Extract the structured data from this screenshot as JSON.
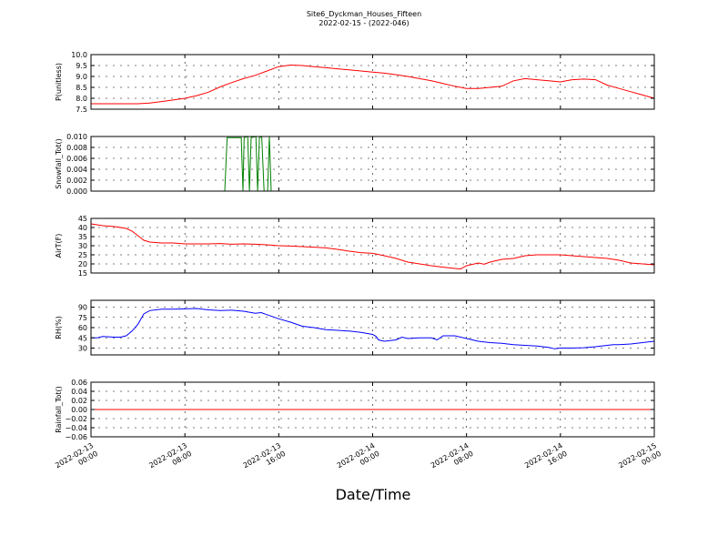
{
  "title": "Site6_Dyckman_Houses_Fifteen",
  "subtitle": "2022-02-15 - (2022-046)",
  "chart_data": {
    "type": "line",
    "xlabel": "Date/Time",
    "x_tick_labels": [
      [
        "2022-02-13",
        "00:00"
      ],
      [
        "2022-02-13",
        "08:00"
      ],
      [
        "2022-02-13",
        "16:00"
      ],
      [
        "2022-02-14",
        "00:00"
      ],
      [
        "2022-02-14",
        "08:00"
      ],
      [
        "2022-02-14",
        "16:00"
      ],
      [
        "2022-02-15",
        "00:00"
      ]
    ],
    "x_range_hours": [
      0,
      48
    ],
    "grid": true,
    "panels": [
      {
        "ylabel": "P(unitless)",
        "ylim": [
          7.5,
          10.0
        ],
        "yticks": [
          "7.5",
          "8.0",
          "8.5",
          "9.0",
          "9.5",
          "10.0"
        ],
        "color": "#ff0000",
        "series": [
          [
            0,
            7.75
          ],
          [
            2,
            7.75
          ],
          [
            4,
            7.75
          ],
          [
            5,
            7.78
          ],
          [
            6,
            7.85
          ],
          [
            7,
            7.92
          ],
          [
            8,
            8.0
          ],
          [
            9,
            8.12
          ],
          [
            10,
            8.28
          ],
          [
            11,
            8.52
          ],
          [
            12,
            8.72
          ],
          [
            13,
            8.9
          ],
          [
            14,
            9.05
          ],
          [
            15,
            9.25
          ],
          [
            16,
            9.45
          ],
          [
            17,
            9.52
          ],
          [
            18,
            9.5
          ],
          [
            19,
            9.45
          ],
          [
            20,
            9.4
          ],
          [
            21,
            9.35
          ],
          [
            22,
            9.3
          ],
          [
            23,
            9.25
          ],
          [
            24,
            9.2
          ],
          [
            25,
            9.15
          ],
          [
            26,
            9.08
          ],
          [
            27,
            9.0
          ],
          [
            28,
            8.9
          ],
          [
            29,
            8.8
          ],
          [
            30,
            8.68
          ],
          [
            31,
            8.55
          ],
          [
            32,
            8.45
          ],
          [
            33,
            8.45
          ],
          [
            34,
            8.5
          ],
          [
            35,
            8.55
          ],
          [
            36,
            8.8
          ],
          [
            37,
            8.9
          ],
          [
            38,
            8.85
          ],
          [
            39,
            8.8
          ],
          [
            40,
            8.75
          ],
          [
            41,
            8.85
          ],
          [
            42,
            8.88
          ],
          [
            43,
            8.85
          ],
          [
            44,
            8.6
          ],
          [
            45,
            8.45
          ],
          [
            46,
            8.3
          ],
          [
            47,
            8.15
          ],
          [
            48,
            8.0
          ]
        ]
      },
      {
        "ylabel": "Snowfall_Tot()",
        "ylim": [
          0.0,
          0.01
        ],
        "yticks": [
          "0.000",
          "0.002",
          "0.004",
          "0.006",
          "0.008",
          "0.010"
        ],
        "color": "#008000",
        "series": [
          [
            0,
            0
          ],
          [
            11.4,
            0
          ],
          [
            11.6,
            0.0098
          ],
          [
            12.8,
            0.0098
          ],
          [
            12.95,
            0.0
          ],
          [
            13.05,
            0.0098
          ],
          [
            13.35,
            0.01
          ],
          [
            13.5,
            0.0
          ],
          [
            13.65,
            0.0098
          ],
          [
            14.05,
            0.01
          ],
          [
            14.2,
            0.0
          ],
          [
            14.35,
            0.0098
          ],
          [
            14.55,
            0.01
          ],
          [
            14.75,
            0.0
          ],
          [
            15.05,
            0.0
          ],
          [
            15.2,
            0.01
          ],
          [
            15.35,
            0.0
          ],
          [
            48,
            0
          ]
        ]
      },
      {
        "ylabel": "AirT(F)",
        "ylim": [
          15,
          45
        ],
        "yticks": [
          "15",
          "20",
          "25",
          "30",
          "35",
          "40",
          "45"
        ],
        "color": "#ff0000",
        "series": [
          [
            0,
            42
          ],
          [
            1,
            41
          ],
          [
            2,
            40.5
          ],
          [
            3,
            39.5
          ],
          [
            3.5,
            38
          ],
          [
            4,
            35.5
          ],
          [
            4.5,
            33
          ],
          [
            5,
            32
          ],
          [
            6,
            31.5
          ],
          [
            7,
            31.5
          ],
          [
            8,
            31
          ],
          [
            9,
            31
          ],
          [
            10,
            31
          ],
          [
            11,
            31.2
          ],
          [
            12,
            30.8
          ],
          [
            13,
            31
          ],
          [
            14,
            30.8
          ],
          [
            15,
            30.5
          ],
          [
            16,
            30
          ],
          [
            17,
            29.8
          ],
          [
            18,
            29.5
          ],
          [
            19,
            29.2
          ],
          [
            20,
            28.8
          ],
          [
            21,
            28
          ],
          [
            22,
            27
          ],
          [
            23,
            26.2
          ],
          [
            24,
            25.8
          ],
          [
            25,
            24.5
          ],
          [
            26,
            23
          ],
          [
            27,
            21
          ],
          [
            28,
            20
          ],
          [
            29,
            19
          ],
          [
            30,
            18.2
          ],
          [
            31,
            17.5
          ],
          [
            31.5,
            17.2
          ],
          [
            32,
            19
          ],
          [
            33,
            20.5
          ],
          [
            33.5,
            19.8
          ],
          [
            34,
            21
          ],
          [
            35,
            22.5
          ],
          [
            36,
            23
          ],
          [
            37,
            24.5
          ],
          [
            38,
            25
          ],
          [
            39,
            25
          ],
          [
            40,
            25
          ],
          [
            41,
            24.5
          ],
          [
            42,
            24
          ],
          [
            43,
            23.5
          ],
          [
            44,
            23
          ],
          [
            45,
            22
          ],
          [
            46,
            20.5
          ],
          [
            47,
            20
          ],
          [
            48,
            19.5
          ]
        ]
      },
      {
        "ylabel": "RH(%)",
        "ylim": [
          20,
          100
        ],
        "yticks": [
          "30",
          "45",
          "60",
          "75",
          "90"
        ],
        "color": "#0000ff",
        "series": [
          [
            0,
            45
          ],
          [
            0.5,
            45
          ],
          [
            1,
            47
          ],
          [
            2,
            46
          ],
          [
            2.5,
            46
          ],
          [
            3,
            48
          ],
          [
            3.5,
            55
          ],
          [
            4,
            65
          ],
          [
            4.5,
            80
          ],
          [
            5,
            85
          ],
          [
            6,
            87
          ],
          [
            7,
            87
          ],
          [
            8,
            87.5
          ],
          [
            9,
            88
          ],
          [
            10,
            86
          ],
          [
            11,
            85
          ],
          [
            12,
            85.5
          ],
          [
            13,
            84
          ],
          [
            14,
            81
          ],
          [
            14.5,
            82
          ],
          [
            15,
            79
          ],
          [
            16,
            73
          ],
          [
            17,
            68
          ],
          [
            18,
            62
          ],
          [
            19,
            60
          ],
          [
            20,
            57
          ],
          [
            21,
            56
          ],
          [
            22,
            55
          ],
          [
            23,
            53
          ],
          [
            24,
            50
          ],
          [
            24.3,
            47
          ],
          [
            24.5,
            42
          ],
          [
            25,
            40
          ],
          [
            26,
            42
          ],
          [
            26.5,
            46
          ],
          [
            27,
            44
          ],
          [
            28,
            45
          ],
          [
            29,
            45
          ],
          [
            29.5,
            42
          ],
          [
            30,
            48
          ],
          [
            31,
            48
          ],
          [
            32,
            44
          ],
          [
            33,
            40
          ],
          [
            34,
            38
          ],
          [
            35,
            37
          ],
          [
            36,
            35
          ],
          [
            37,
            34
          ],
          [
            38,
            33
          ],
          [
            39,
            31
          ],
          [
            39.5,
            29
          ],
          [
            40,
            30
          ],
          [
            41,
            30
          ],
          [
            42,
            30.5
          ],
          [
            43,
            32
          ],
          [
            44,
            34
          ],
          [
            44.5,
            35
          ],
          [
            45,
            35
          ],
          [
            46,
            36
          ],
          [
            47,
            38
          ],
          [
            48,
            40
          ]
        ]
      },
      {
        "ylabel": "Rainfall_Tot()",
        "ylim": [
          -0.06,
          0.06
        ],
        "yticks": [
          "−0.06",
          "−0.04",
          "−0.02",
          "0.00",
          "0.02",
          "0.04",
          "0.06"
        ],
        "color": "#ff0000",
        "series": [
          [
            0,
            0
          ],
          [
            48,
            0
          ]
        ]
      }
    ]
  }
}
